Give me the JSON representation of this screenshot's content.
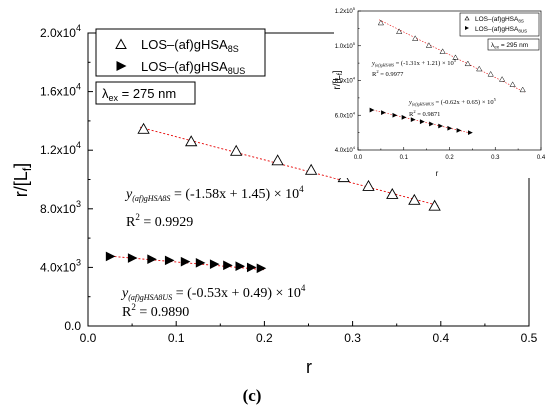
{
  "chart_data": [
    {
      "type": "scatter",
      "xlabel": "r",
      "ylabel": "r/[L",
      "ylabel_sub": "f",
      "ylabel_close": "]",
      "xlim": [
        0,
        0.5
      ],
      "ylim": [
        0,
        20000
      ],
      "x_ticks": [
        "0.0",
        "0.1",
        "0.2",
        "0.3",
        "0.4",
        "0.5"
      ],
      "y_ticks": [
        {
          "mant": "0.0",
          "exp": ""
        },
        {
          "mant": "4.0x10",
          "exp": "3"
        },
        {
          "mant": "8.0x10",
          "exp": "3"
        },
        {
          "mant": "1.2x10",
          "exp": "4"
        },
        {
          "mant": "1.6x10",
          "exp": "4"
        },
        {
          "mant": "2.0x10",
          "exp": "4"
        }
      ],
      "legend": {
        "entries": [
          {
            "pre": "LOS–(af)gHSA",
            "sub": "8S"
          },
          {
            "pre": "LOS–(af)gHSA",
            "sub": "8US"
          }
        ]
      },
      "lambda_label": {
        "pre": "λ",
        "sub": "ex",
        "post": " = 275 nm"
      },
      "series": [
        {
          "name": "LOS–(af)gHSA8S",
          "marker": "open-triangle",
          "x": [
            0.063,
            0.117,
            0.168,
            0.215,
            0.253,
            0.29,
            0.318,
            0.345,
            0.37,
            0.393
          ],
          "y": [
            13400,
            12550,
            11900,
            11250,
            10600,
            10100,
            9500,
            8950,
            8550,
            8150
          ],
          "fit": {
            "slope": -15800,
            "intercept": 14500
          },
          "equation": {
            "prefix": "y",
            "sub": "(af)gHSA8S",
            "rest": " = (-1.58x + 1.45) × 10",
            "exp": "4"
          },
          "r2": {
            "pre": "R",
            "sup": "2",
            "post": " = 0.9929"
          }
        },
        {
          "name": "LOS–(af)gHSA8US",
          "marker": "filled-triangle-right",
          "x": [
            0.025,
            0.05,
            0.072,
            0.092,
            0.11,
            0.127,
            0.143,
            0.158,
            0.172,
            0.185,
            0.196
          ],
          "y": [
            4750,
            4640,
            4560,
            4480,
            4390,
            4310,
            4220,
            4140,
            4080,
            4000,
            3940
          ],
          "fit": {
            "slope": -5300,
            "intercept": 4900
          },
          "equation": {
            "prefix": "y",
            "sub": "(af)gHSA8US",
            "rest": " = (-0.53x + 0.49) × 10",
            "exp": "4"
          },
          "r2": {
            "pre": "R",
            "sup": "2",
            "post": " = 0.9890"
          }
        }
      ]
    },
    {
      "type": "scatter",
      "xlabel": "r",
      "ylabel": "r/[L",
      "ylabel_sub": "f",
      "ylabel_close": "]",
      "xlim": [
        0,
        0.4
      ],
      "ylim": [
        40000,
        120000
      ],
      "x_ticks": [
        "0.0",
        "0.1",
        "0.2",
        "0.3",
        "0.4"
      ],
      "y_ticks": [
        {
          "mant": "4.0x10",
          "exp": "4"
        },
        {
          "mant": "6.0x10",
          "exp": "4"
        },
        {
          "mant": "8.0x10",
          "exp": "4"
        },
        {
          "mant": "1.0x10",
          "exp": "5"
        },
        {
          "mant": "1.2x10",
          "exp": "5"
        }
      ],
      "legend": {
        "entries": [
          {
            "pre": "LOS–(af)gHSA",
            "sub": "8S"
          },
          {
            "pre": "LOS–(af)gHSA",
            "sub": "8US"
          }
        ]
      },
      "lambda_label": {
        "pre": "λ",
        "sub": "ex",
        "post": " = 295 nm"
      },
      "series": [
        {
          "name": "LOS–(af)gHSA8S",
          "marker": "open-triangle",
          "x": [
            0.05,
            0.09,
            0.125,
            0.155,
            0.185,
            0.213,
            0.24,
            0.265,
            0.29,
            0.315,
            0.338,
            0.36
          ],
          "y": [
            113000,
            108000,
            104000,
            100000,
            96500,
            93000,
            89500,
            86500,
            83500,
            80500,
            77500,
            74500
          ],
          "fit": {
            "slope": -131000,
            "intercept": 121000
          },
          "equation": {
            "prefix": "y",
            "sub": "(af)gHSA8S",
            "rest": " = (-1.31x + 1.21) × 10",
            "exp": "5"
          },
          "r2": {
            "pre": "R",
            "sup": "2",
            "post": " = 0.9977"
          }
        },
        {
          "name": "LOS–(af)gHSA8US",
          "marker": "filled-triangle-right",
          "x": [
            0.03,
            0.055,
            0.08,
            0.1,
            0.12,
            0.14,
            0.16,
            0.18,
            0.2,
            0.22,
            0.245
          ],
          "y": [
            63000,
            61500,
            60000,
            58800,
            57500,
            56300,
            55000,
            53800,
            52500,
            51300,
            50000
          ],
          "fit": {
            "slope": -62000,
            "intercept": 65000
          },
          "equation": {
            "prefix": "y",
            "sub": "(af)gHSA8US",
            "rest": " = (-0.62x + 0.65) × 10",
            "exp": "5"
          },
          "r2": {
            "pre": "R",
            "sup": "2",
            "post": " = 0.9871"
          }
        }
      ]
    }
  ],
  "panel_label": "(c)"
}
